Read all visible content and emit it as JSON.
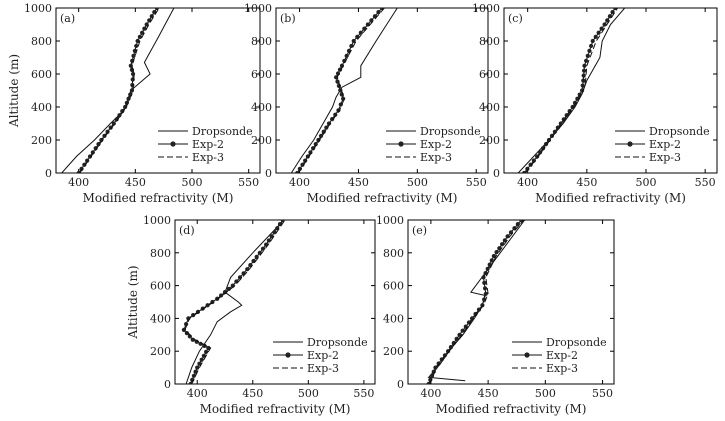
{
  "chart_data": [
    {
      "type": "line",
      "panel_label": "(a)",
      "xlabel": "Modified refractivity (M)",
      "ylabel": "Altitude (m)",
      "xlim": [
        380,
        560
      ],
      "ylim": [
        0,
        1000
      ],
      "xticks": [
        400,
        450,
        500,
        550
      ],
      "yticks": [
        0,
        200,
        400,
        600,
        800,
        1000
      ],
      "grid": false,
      "legend_position": "lower-right",
      "series": [
        {
          "name": "Dropsonde",
          "style": "solid",
          "x": [
            385,
            398,
            414,
            428,
            440,
            442,
            446,
            463,
            458,
            470,
            484
          ],
          "y": [
            0,
            100,
            200,
            300,
            380,
            420,
            500,
            600,
            670,
            820,
            1000
          ]
        },
        {
          "name": "Exp-2",
          "style": "solid-dot",
          "x": [
            400,
            410,
            420,
            431,
            441,
            447,
            448,
            446,
            452,
            460,
            469
          ],
          "y": [
            0,
            100,
            200,
            300,
            400,
            500,
            600,
            650,
            800,
            900,
            1000
          ]
        },
        {
          "name": "Exp-3",
          "style": "dashed",
          "x": [
            401,
            411,
            421,
            432,
            442,
            448,
            449,
            447,
            454,
            462,
            471
          ],
          "y": [
            0,
            100,
            200,
            300,
            400,
            500,
            600,
            650,
            800,
            900,
            1000
          ]
        }
      ]
    },
    {
      "type": "line",
      "panel_label": "(b)",
      "xlabel": "Modified refractivity (M)",
      "ylabel": "",
      "xlim": [
        380,
        560
      ],
      "ylim": [
        0,
        1000
      ],
      "xticks": [
        400,
        450,
        500,
        550
      ],
      "yticks": [
        0,
        200,
        400,
        600,
        800,
        1000
      ],
      "grid": false,
      "legend_position": "lower-right",
      "series": [
        {
          "name": "Dropsonde",
          "style": "solid",
          "x": [
            393,
            402,
            412,
            420,
            428,
            431,
            436,
            452,
            452,
            465,
            483
          ],
          "y": [
            0,
            100,
            200,
            300,
            400,
            460,
            520,
            580,
            650,
            800,
            1000
          ]
        },
        {
          "name": "Exp-2",
          "style": "solid-dot",
          "x": [
            398,
            407,
            416,
            425,
            433,
            437,
            431,
            436,
            446,
            458,
            470
          ],
          "y": [
            0,
            100,
            200,
            300,
            380,
            450,
            580,
            650,
            800,
            900,
            1000
          ]
        },
        {
          "name": "Exp-3",
          "style": "dashed",
          "x": [
            399,
            408,
            417,
            426,
            434,
            438,
            432,
            437,
            448,
            460,
            472
          ],
          "y": [
            0,
            100,
            200,
            300,
            380,
            450,
            580,
            650,
            800,
            900,
            1000
          ]
        }
      ]
    },
    {
      "type": "line",
      "panel_label": "(c)",
      "xlabel": "Modified refractivity (M)",
      "ylabel": "",
      "xlim": [
        380,
        560
      ],
      "ylim": [
        0,
        1000
      ],
      "xticks": [
        400,
        450,
        500,
        550
      ],
      "yticks": [
        0,
        200,
        400,
        600,
        800,
        1000
      ],
      "grid": false,
      "legend_position": "lower-right",
      "series": [
        {
          "name": "Dropsonde",
          "style": "solid",
          "x": [
            392,
            405,
            418,
            430,
            440,
            446,
            450,
            461,
            463,
            470,
            482
          ],
          "y": [
            0,
            100,
            200,
            300,
            400,
            480,
            560,
            700,
            800,
            900,
            1000
          ]
        },
        {
          "name": "Exp-2",
          "style": "solid-dot",
          "x": [
            397,
            408,
            418,
            428,
            438,
            446,
            447,
            448,
            455,
            465,
            474
          ],
          "y": [
            0,
            100,
            200,
            300,
            400,
            500,
            560,
            650,
            800,
            900,
            1000
          ]
        },
        {
          "name": "Exp-3",
          "style": "dashed",
          "x": [
            398,
            409,
            419,
            429,
            439,
            447,
            449,
            450,
            458,
            467,
            476
          ],
          "y": [
            0,
            100,
            200,
            300,
            400,
            500,
            560,
            650,
            800,
            900,
            1000
          ]
        }
      ]
    },
    {
      "type": "line",
      "panel_label": "(d)",
      "xlabel": "Modified refractivity (M)",
      "ylabel": "Altitude (m)",
      "xlim": [
        380,
        560
      ],
      "ylim": [
        0,
        1000
      ],
      "xticks": [
        400,
        450,
        500,
        550
      ],
      "yticks": [
        0,
        200,
        400,
        600,
        800,
        1000
      ],
      "grid": false,
      "legend_position": "lower-right",
      "series": [
        {
          "name": "Dropsonde",
          "style": "solid",
          "x": [
            390,
            395,
            402,
            412,
            418,
            430,
            440,
            437,
            425,
            430,
            450,
            478
          ],
          "y": [
            0,
            100,
            200,
            300,
            380,
            440,
            480,
            500,
            560,
            650,
            800,
            1000
          ]
        },
        {
          "name": "Exp-2",
          "style": "solid-dot",
          "x": [
            394,
            400,
            410,
            396,
            388,
            392,
            405,
            418,
            432,
            445,
            462,
            477
          ],
          "y": [
            0,
            100,
            220,
            270,
            330,
            400,
            460,
            520,
            600,
            700,
            850,
            1000
          ]
        },
        {
          "name": "Exp-3",
          "style": "dashed",
          "x": [
            395,
            402,
            412,
            398,
            389,
            393,
            406,
            419,
            434,
            447,
            464,
            479
          ],
          "y": [
            0,
            100,
            220,
            270,
            330,
            400,
            460,
            520,
            600,
            700,
            850,
            1000
          ]
        }
      ]
    },
    {
      "type": "line",
      "panel_label": "(e)",
      "xlabel": "Modified refractivity (M)",
      "ylabel": "",
      "xlim": [
        380,
        560
      ],
      "ylim": [
        0,
        1000
      ],
      "xticks": [
        400,
        450,
        500,
        550
      ],
      "yticks": [
        0,
        200,
        400,
        600,
        800,
        1000
      ],
      "grid": false,
      "legend_position": "lower-right",
      "series": [
        {
          "name": "Dropsonde",
          "style": "solid",
          "x": [
            430,
            398,
            408,
            418,
            428,
            438,
            445,
            447,
            435,
            482
          ],
          "y": [
            20,
            40,
            120,
            220,
            300,
            400,
            480,
            540,
            560,
            1000
          ]
        },
        {
          "name": "Exp-2",
          "style": "solid-dot",
          "x": [
            398,
            404,
            415,
            425,
            436,
            445,
            448,
            446,
            455,
            467,
            479
          ],
          "y": [
            0,
            100,
            200,
            300,
            400,
            480,
            550,
            650,
            780,
            900,
            1000
          ]
        },
        {
          "name": "Exp-3",
          "style": "dashed",
          "x": [
            399,
            405,
            416,
            427,
            437,
            446,
            450,
            448,
            457,
            469,
            481
          ],
          "y": [
            0,
            100,
            200,
            300,
            400,
            480,
            550,
            650,
            780,
            900,
            1000
          ]
        }
      ]
    }
  ]
}
